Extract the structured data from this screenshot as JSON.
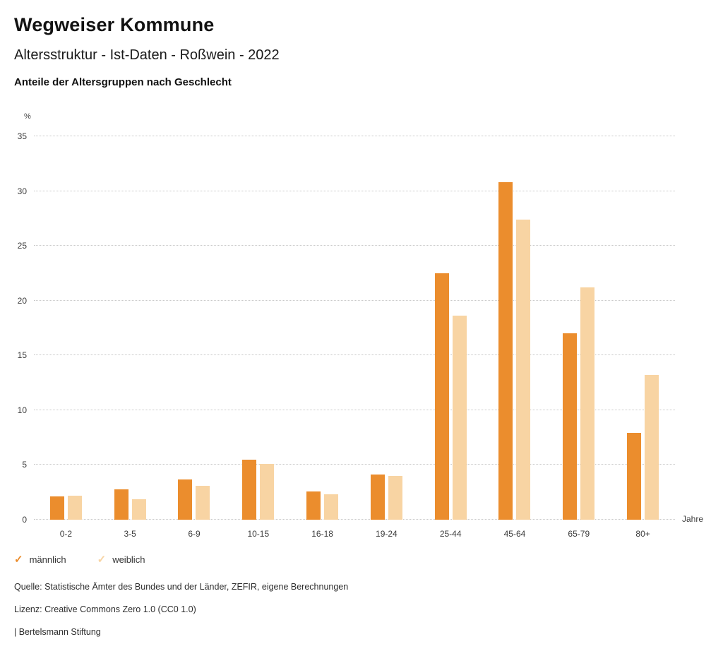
{
  "header": {
    "title": "Wegweiser Kommune",
    "subtitle": "Altersstruktur - Ist-Daten - Roßwein - 2022",
    "chart_heading": "Anteile der Altersgruppen nach Geschlecht"
  },
  "chart_data": {
    "type": "bar",
    "title": "Anteile der Altersgruppen nach Geschlecht",
    "categories": [
      "0-2",
      "3-5",
      "6-9",
      "10-15",
      "16-18",
      "19-24",
      "25-44",
      "45-64",
      "65-79",
      "80+"
    ],
    "series": [
      {
        "name": "männlich",
        "color": "#EB8D2D",
        "values": [
          2.1,
          2.8,
          3.7,
          5.5,
          2.6,
          4.1,
          22.5,
          30.8,
          17.0,
          7.9
        ]
      },
      {
        "name": "weiblich",
        "color": "#F8D4A3",
        "values": [
          2.2,
          1.9,
          3.1,
          5.1,
          2.3,
          4.0,
          18.6,
          27.4,
          21.2,
          13.2
        ]
      }
    ],
    "xlabel": "Jahre",
    "ylabel": "%",
    "ylim": [
      0,
      35
    ],
    "yticks": [
      0,
      5,
      10,
      15,
      20,
      25,
      30,
      35
    ],
    "grid": true,
    "gridline_color": "#c9c9c9",
    "legend_position": "bottom"
  },
  "legend": {
    "items": [
      {
        "label": "männlich",
        "color": "#EB8D2D"
      },
      {
        "label": "weiblich",
        "color": "#F8D4A3"
      }
    ]
  },
  "footer": {
    "source": "Quelle: Statistische Ämter des Bundes und der Länder, ZEFIR, eigene Berechnungen",
    "license": "Lizenz: Creative Commons Zero 1.0 (CC0 1.0)",
    "attribution": "| Bertelsmann Stiftung"
  }
}
